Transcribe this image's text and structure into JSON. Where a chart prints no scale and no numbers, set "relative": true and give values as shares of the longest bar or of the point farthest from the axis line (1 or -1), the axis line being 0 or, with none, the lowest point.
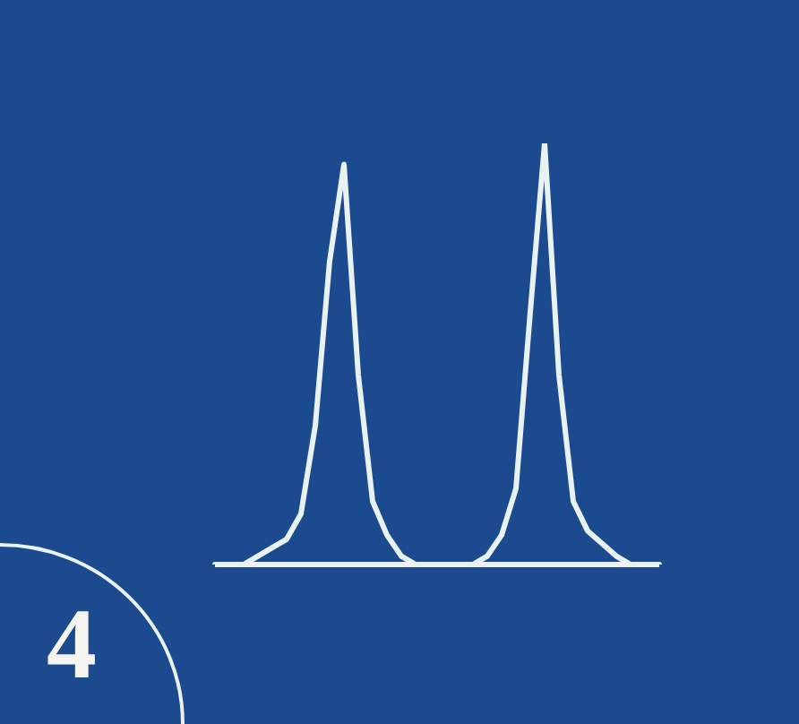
{
  "chart_data": {
    "type": "line",
    "relative": true,
    "categories": [
      null,
      null,
      null,
      null,
      null,
      null,
      null,
      null,
      null,
      null,
      null,
      null,
      null,
      null,
      null,
      null,
      null,
      null,
      null,
      null,
      null,
      null,
      null,
      null,
      null,
      null,
      null,
      null,
      null,
      null,
      null,
      null
    ],
    "series": [
      {
        "color": "#e8f2f0",
        "values": [
          0,
          0,
          0,
          0.02,
          0.04,
          0.06,
          0.12,
          0.33,
          0.72,
          0.95,
          0.45,
          0.15,
          0.07,
          0.02,
          0,
          0,
          0,
          0,
          0,
          0.02,
          0.07,
          0.18,
          0.6,
          1,
          0.45,
          0.15,
          0.08,
          0.05,
          0.02,
          0,
          0,
          0
        ]
      }
    ],
    "annotations": [
      "4"
    ]
  }
}
